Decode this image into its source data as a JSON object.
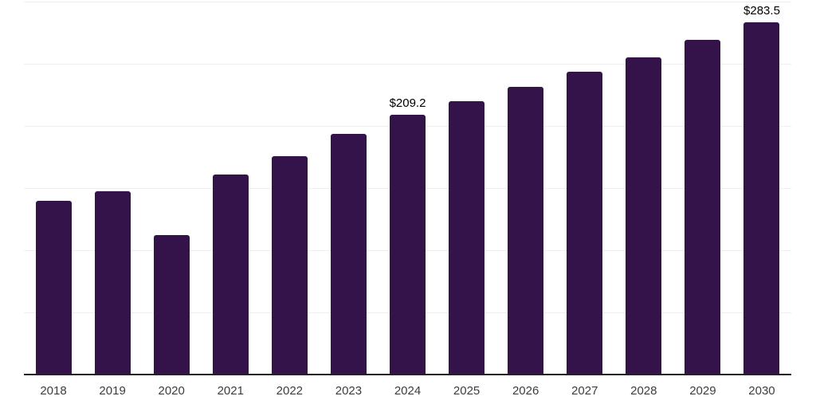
{
  "chart_data": {
    "type": "bar",
    "title": "",
    "xlabel": "",
    "ylabel": "",
    "categories": [
      "2018",
      "2019",
      "2020",
      "2021",
      "2022",
      "2023",
      "2024",
      "2025",
      "2026",
      "2027",
      "2028",
      "2029",
      "2030"
    ],
    "values": [
      139.5,
      147.2,
      112.0,
      160.6,
      175.4,
      193.3,
      209.2,
      219.8,
      231.2,
      243.8,
      255.4,
      269.4,
      283.5
    ],
    "bar_labels": [
      "",
      "",
      "",
      "",
      "",
      "",
      "$209.2",
      "",
      "",
      "",
      "",
      "",
      "$283.5"
    ],
    "ylim": [
      0,
      300
    ],
    "gridline_interval": 50,
    "grid": true,
    "legend_position": "none",
    "y_axis_labels_visible": false,
    "unit_prefix": "$"
  },
  "colors": {
    "background": "#ffffff",
    "bar": "#34124a",
    "gridline": "#efefef",
    "axis_line": "#222222",
    "tick_label": "#3d3d3d",
    "value_label": "#000000"
  }
}
